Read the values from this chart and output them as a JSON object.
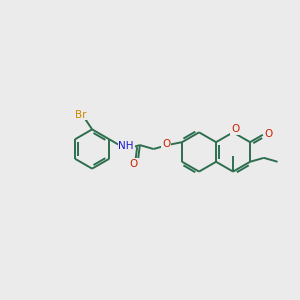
{
  "background_color": "#ebebeb",
  "bond_color": "#2d6e4e",
  "atom_colors": {
    "Br": "#cc8800",
    "N": "#1a1acc",
    "O": "#cc2200"
  },
  "figsize": [
    3.0,
    3.0
  ],
  "dpi": 100,
  "bond_lw": 1.4,
  "ring_r": 20,
  "font_size": 7.5
}
